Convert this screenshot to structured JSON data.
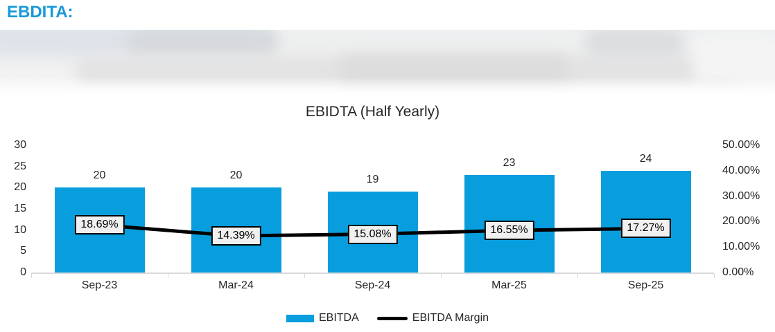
{
  "header": {
    "title": "EBDITA:"
  },
  "colors": {
    "header_blue": "#1899D8",
    "bar_blue": "#089EDE",
    "line_black": "#000000",
    "axis_gray": "#D9D9D9",
    "text_dark": "#262626",
    "point_label_bg": "#F0F0F0"
  },
  "chart_data": {
    "type": "combo-bar-line",
    "title": "EBIDTA (Half Yearly)",
    "categories": [
      "Sep-23",
      "Mar-24",
      "Sep-24",
      "Mar-25",
      "Sep-25"
    ],
    "series": [
      {
        "name": "EBITDA",
        "chart_type": "bar",
        "axis": "left",
        "values": [
          20,
          20,
          19,
          23,
          24
        ],
        "data_labels": [
          "20",
          "20",
          "19",
          "23",
          "24"
        ]
      },
      {
        "name": "EBITDA Margin",
        "chart_type": "line",
        "axis": "right",
        "values": [
          18.69,
          14.39,
          15.08,
          16.55,
          17.27
        ],
        "data_labels": [
          "18.69%",
          "14.39%",
          "15.08%",
          "16.55%",
          "17.27%"
        ]
      }
    ],
    "left_axis": {
      "min": 0,
      "max": 30,
      "ticks": [
        {
          "label": "30",
          "v": 30
        },
        {
          "label": "25",
          "v": 25
        },
        {
          "label": "20",
          "v": 20
        },
        {
          "label": "15",
          "v": 15
        },
        {
          "label": "10",
          "v": 10
        },
        {
          "label": "5",
          "v": 5
        },
        {
          "label": "0",
          "v": 0
        }
      ]
    },
    "right_axis": {
      "min": 0,
      "max": 50,
      "ticks": [
        {
          "label": "50.00%",
          "v": 50
        },
        {
          "label": "40.00%",
          "v": 40
        },
        {
          "label": "30.00%",
          "v": 30
        },
        {
          "label": "20.00%",
          "v": 20
        },
        {
          "label": "10.00%",
          "v": 10
        },
        {
          "label": "0.00%",
          "v": 0
        }
      ]
    },
    "legend": {
      "position": "bottom",
      "items": [
        {
          "label": "EBITDA",
          "swatch": "bar"
        },
        {
          "label": "EBITDA Margin",
          "swatch": "line"
        }
      ]
    },
    "gridlines": false
  }
}
